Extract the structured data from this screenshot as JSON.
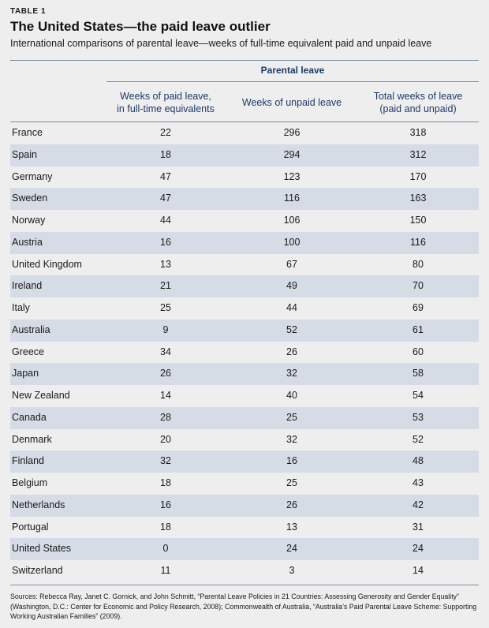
{
  "table_label": "TABLE 1",
  "title": "The United States—the paid leave outlier",
  "subtitle": "International comparisons of parental leave—weeks of full-time equivalent paid and unpaid leave",
  "group_header": "Parental leave",
  "columns": {
    "paid_line1": "Weeks of paid leave,",
    "paid_line2": "in full-time equivalents",
    "unpaid": "Weeks of unpaid leave",
    "total_line1": "Total weeks of leave",
    "total_line2": "(paid and unpaid)"
  },
  "sources": "Sources: Rebecca Ray, Janet C. Gornick, and John Schmitt, “Parental Leave Policies in 21 Countries: Assessing Generosity and Gender Equality” (Washington, D.C.: Center for Economic and Policy Research, 2008); Commonwealth of Australia, “Australia’s Paid Parental Leave Scheme: Supporting Working Australian Families” (2009).",
  "colors": {
    "header_text": "#1c3a66",
    "shaded_row": "#d5dce5",
    "background": "#eeeeef",
    "rule": "#7a8ea6"
  },
  "chart_data": {
    "type": "table",
    "columns": [
      "",
      "Weeks of paid leave, in full-time equivalents",
      "Weeks of unpaid leave",
      "Total weeks of leave (paid and unpaid)"
    ],
    "rows": [
      {
        "country": "France",
        "paid": 22,
        "unpaid": 296,
        "total": 318
      },
      {
        "country": "Spain",
        "paid": 18,
        "unpaid": 294,
        "total": 312
      },
      {
        "country": "Germany",
        "paid": 47,
        "unpaid": 123,
        "total": 170
      },
      {
        "country": "Sweden",
        "paid": 47,
        "unpaid": 116,
        "total": 163
      },
      {
        "country": "Norway",
        "paid": 44,
        "unpaid": 106,
        "total": 150
      },
      {
        "country": "Austria",
        "paid": 16,
        "unpaid": 100,
        "total": 116
      },
      {
        "country": "United Kingdom",
        "paid": 13,
        "unpaid": 67,
        "total": 80
      },
      {
        "country": "Ireland",
        "paid": 21,
        "unpaid": 49,
        "total": 70
      },
      {
        "country": "Italy",
        "paid": 25,
        "unpaid": 44,
        "total": 69
      },
      {
        "country": "Australia",
        "paid": 9,
        "unpaid": 52,
        "total": 61
      },
      {
        "country": "Greece",
        "paid": 34,
        "unpaid": 26,
        "total": 60
      },
      {
        "country": "Japan",
        "paid": 26,
        "unpaid": 32,
        "total": 58
      },
      {
        "country": "New Zealand",
        "paid": 14,
        "unpaid": 40,
        "total": 54
      },
      {
        "country": "Canada",
        "paid": 28,
        "unpaid": 25,
        "total": 53
      },
      {
        "country": "Denmark",
        "paid": 20,
        "unpaid": 32,
        "total": 52
      },
      {
        "country": "Finland",
        "paid": 32,
        "unpaid": 16,
        "total": 48
      },
      {
        "country": "Belgium",
        "paid": 18,
        "unpaid": 25,
        "total": 43
      },
      {
        "country": "Netherlands",
        "paid": 16,
        "unpaid": 26,
        "total": 42
      },
      {
        "country": "Portugal",
        "paid": 18,
        "unpaid": 13,
        "total": 31
      },
      {
        "country": "United States",
        "paid": 0,
        "unpaid": 24,
        "total": 24
      },
      {
        "country": "Switzerland",
        "paid": 11,
        "unpaid": 3,
        "total": 14
      }
    ]
  }
}
